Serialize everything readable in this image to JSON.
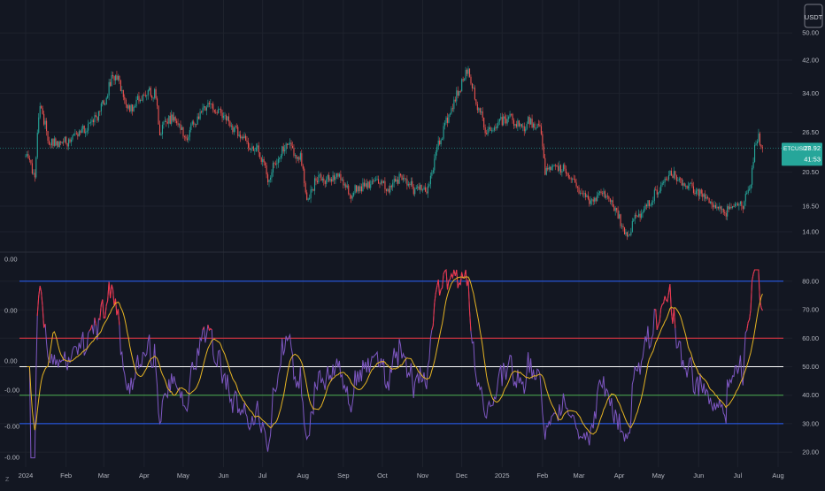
{
  "colors": {
    "background": "#131722",
    "grid": "#1e222d",
    "text": "#b2b5be",
    "candle_up": "#26a69a",
    "candle_down": "#ef5350",
    "badge_bg": "#26a69a",
    "last_price_line": "#26a69a",
    "rsi_line": "#7e57c2",
    "rsi_ma": "#e6b422",
    "rsi_highlight": "#f23645",
    "level_80": "#2962ff",
    "level_60": "#f23645",
    "level_50": "#ffffff",
    "level_40": "#4caf50",
    "level_30": "#2962ff"
  },
  "header": {
    "currency_label": "USDT"
  },
  "price_badge": {
    "symbol": "ETCUSDT",
    "price": "23.92",
    "countdown": "41:53"
  },
  "chart_data": [
    {
      "type": "candlestick",
      "scale": "log",
      "last_price": 23.92,
      "y_ticks": [
        "50.00",
        "42.00",
        "34.00",
        "26.50",
        "20.50",
        "16.50",
        "14.00"
      ],
      "x_tick_labels": [
        "2024",
        "Feb",
        "Mar",
        "Apr",
        "May",
        "Jun",
        "Jul",
        "Aug",
        "Sep",
        "Oct",
        "Nov",
        "Dec",
        "2025",
        "Feb",
        "Mar",
        "Apr",
        "May",
        "Jun",
        "Jul",
        "Aug"
      ],
      "anchors": [
        [
          "2024-01-01",
          23.0
        ],
        [
          "2024-01-05",
          21.5
        ],
        [
          "2024-01-08",
          20.3
        ],
        [
          "2024-01-12",
          32.0
        ],
        [
          "2024-01-18",
          25.5
        ],
        [
          "2024-01-25",
          24.5
        ],
        [
          "2024-02-05",
          25.2
        ],
        [
          "2024-02-15",
          27.0
        ],
        [
          "2024-02-25",
          29.5
        ],
        [
          "2024-03-03",
          33.0
        ],
        [
          "2024-03-08",
          38.5
        ],
        [
          "2024-03-12",
          36.5
        ],
        [
          "2024-03-20",
          30.5
        ],
        [
          "2024-03-28",
          32.5
        ],
        [
          "2024-04-05",
          34.5
        ],
        [
          "2024-04-10",
          33.5
        ],
        [
          "2024-04-13",
          26.5
        ],
        [
          "2024-04-20",
          29.0
        ],
        [
          "2024-04-28",
          28.0
        ],
        [
          "2024-05-02",
          25.5
        ],
        [
          "2024-05-10",
          28.0
        ],
        [
          "2024-05-20",
          32.5
        ],
        [
          "2024-05-28",
          30.0
        ],
        [
          "2024-06-05",
          28.5
        ],
        [
          "2024-06-12",
          26.0
        ],
        [
          "2024-06-20",
          24.5
        ],
        [
          "2024-06-28",
          23.5
        ],
        [
          "2024-07-05",
          19.8
        ],
        [
          "2024-07-10",
          21.5
        ],
        [
          "2024-07-20",
          24.5
        ],
        [
          "2024-07-30",
          22.5
        ],
        [
          "2024-08-05",
          16.8
        ],
        [
          "2024-08-10",
          19.5
        ],
        [
          "2024-08-20",
          19.5
        ],
        [
          "2024-08-28",
          20.2
        ],
        [
          "2024-09-06",
          17.8
        ],
        [
          "2024-09-15",
          18.5
        ],
        [
          "2024-09-25",
          19.5
        ],
        [
          "2024-10-05",
          18.5
        ],
        [
          "2024-10-15",
          19.8
        ],
        [
          "2024-10-25",
          18.5
        ],
        [
          "2024-11-05",
          18.2
        ],
        [
          "2024-11-12",
          24.0
        ],
        [
          "2024-11-22",
          30.0
        ],
        [
          "2024-12-01",
          36.5
        ],
        [
          "2024-12-06",
          39.5
        ],
        [
          "2024-12-12",
          32.0
        ],
        [
          "2024-12-20",
          26.5
        ],
        [
          "2024-12-28",
          27.5
        ],
        [
          "2025-01-06",
          29.5
        ],
        [
          "2025-01-15",
          27.0
        ],
        [
          "2025-01-23",
          28.5
        ],
        [
          "2025-01-31",
          27.0
        ],
        [
          "2025-02-03",
          20.5
        ],
        [
          "2025-02-10",
          21.5
        ],
        [
          "2025-02-20",
          20.5
        ],
        [
          "2025-03-01",
          18.5
        ],
        [
          "2025-03-10",
          17.0
        ],
        [
          "2025-03-20",
          17.8
        ],
        [
          "2025-03-28",
          16.5
        ],
        [
          "2025-04-07",
          13.3
        ],
        [
          "2025-04-12",
          15.2
        ],
        [
          "2025-04-22",
          16.5
        ],
        [
          "2025-04-30",
          18.0
        ],
        [
          "2025-05-10",
          20.5
        ],
        [
          "2025-05-15",
          19.5
        ],
        [
          "2025-05-25",
          18.5
        ],
        [
          "2025-06-05",
          17.5
        ],
        [
          "2025-06-15",
          16.5
        ],
        [
          "2025-06-22",
          15.8
        ],
        [
          "2025-06-28",
          16.5
        ],
        [
          "2025-07-05",
          16.8
        ],
        [
          "2025-07-10",
          18.5
        ],
        [
          "2025-07-14",
          23.5
        ],
        [
          "2025-07-17",
          25.8
        ],
        [
          "2025-07-20",
          23.92
        ]
      ]
    },
    {
      "type": "line",
      "name": "RSI",
      "y_ticks": [
        "80.00",
        "70.00",
        "60.00",
        "50.00",
        "40.00",
        "30.00",
        "20.00"
      ],
      "ylim": [
        17.5,
        86
      ],
      "levels": [
        80,
        60,
        50,
        40,
        30
      ],
      "left_axis_ticks": [
        "0.00",
        "0.00",
        "0.00",
        "-0.00",
        "-0.00",
        "-0.00"
      ],
      "smoothing_length": 14
    }
  ]
}
